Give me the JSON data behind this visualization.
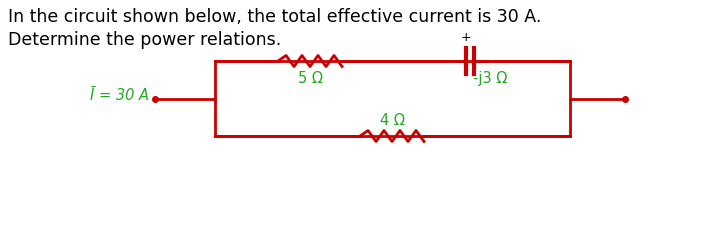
{
  "title_line1": "In the circuit shown below, the total effective current is 30 A.",
  "title_line2": "Determine the power relations.",
  "text_color": "#000000",
  "circuit_color": "#cc0000",
  "label_color": "#22aa22",
  "current_label": "Ī = 30 A",
  "resistor_top_label": "5 Ω",
  "capacitor_label": "-j3 Ω",
  "resistor_bot_label": "4 Ω",
  "background_color": "#ffffff",
  "title_fontsize": 12.5,
  "label_fontsize": 10.5
}
